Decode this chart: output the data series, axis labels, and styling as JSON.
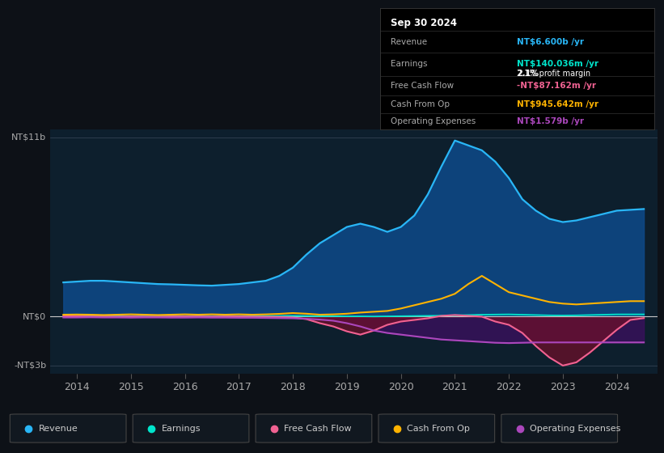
{
  "bg_color": "#0d1117",
  "plot_bg_color": "#0d1f2d",
  "years": [
    2013.75,
    2014.0,
    2014.25,
    2014.5,
    2014.75,
    2015.0,
    2015.25,
    2015.5,
    2015.75,
    2016.0,
    2016.25,
    2016.5,
    2016.75,
    2017.0,
    2017.25,
    2017.5,
    2017.75,
    2018.0,
    2018.25,
    2018.5,
    2018.75,
    2019.0,
    2019.25,
    2019.5,
    2019.75,
    2020.0,
    2020.25,
    2020.5,
    2020.75,
    2021.0,
    2021.25,
    2021.5,
    2021.75,
    2022.0,
    2022.25,
    2022.5,
    2022.75,
    2023.0,
    2023.25,
    2023.5,
    2023.75,
    2024.0,
    2024.25,
    2024.5
  ],
  "revenue": [
    2.1,
    2.15,
    2.2,
    2.2,
    2.15,
    2.1,
    2.05,
    2.0,
    1.98,
    1.95,
    1.92,
    1.9,
    1.95,
    2.0,
    2.1,
    2.2,
    2.5,
    3.0,
    3.8,
    4.5,
    5.0,
    5.5,
    5.7,
    5.5,
    5.2,
    5.5,
    6.2,
    7.5,
    9.2,
    10.8,
    10.5,
    10.2,
    9.5,
    8.5,
    7.2,
    6.5,
    6.0,
    5.8,
    5.9,
    6.1,
    6.3,
    6.5,
    6.55,
    6.6
  ],
  "earnings": [
    0.03,
    0.04,
    0.04,
    0.03,
    0.03,
    0.02,
    0.01,
    0.01,
    0.02,
    0.02,
    0.02,
    0.01,
    0.02,
    0.03,
    0.03,
    0.04,
    0.04,
    0.05,
    0.04,
    0.03,
    0.03,
    0.02,
    0.02,
    0.01,
    0.02,
    0.03,
    0.04,
    0.05,
    0.06,
    0.08,
    0.1,
    0.12,
    0.13,
    0.14,
    0.12,
    0.1,
    0.08,
    0.07,
    0.08,
    0.1,
    0.12,
    0.14,
    0.14,
    0.14
  ],
  "free_cash_flow": [
    0.02,
    0.02,
    0.01,
    0.01,
    0.0,
    0.01,
    0.0,
    0.0,
    0.01,
    0.01,
    0.01,
    0.0,
    0.01,
    0.01,
    0.0,
    -0.01,
    -0.02,
    -0.05,
    -0.15,
    -0.4,
    -0.6,
    -0.9,
    -1.1,
    -0.85,
    -0.5,
    -0.3,
    -0.2,
    -0.1,
    0.05,
    0.1,
    0.05,
    0.0,
    -0.3,
    -0.5,
    -1.0,
    -1.8,
    -2.5,
    -3.0,
    -2.8,
    -2.2,
    -1.5,
    -0.8,
    -0.2,
    -0.09
  ],
  "cash_from_op": [
    0.12,
    0.13,
    0.12,
    0.1,
    0.12,
    0.14,
    0.12,
    0.1,
    0.12,
    0.14,
    0.12,
    0.14,
    0.12,
    0.14,
    0.12,
    0.14,
    0.17,
    0.22,
    0.18,
    0.12,
    0.14,
    0.18,
    0.25,
    0.3,
    0.35,
    0.5,
    0.7,
    0.9,
    1.1,
    1.4,
    2.0,
    2.5,
    2.0,
    1.5,
    1.3,
    1.1,
    0.9,
    0.8,
    0.75,
    0.8,
    0.85,
    0.9,
    0.95,
    0.95
  ],
  "operating_expenses": [
    -0.05,
    -0.05,
    -0.04,
    -0.05,
    -0.05,
    -0.06,
    -0.05,
    -0.05,
    -0.06,
    -0.06,
    -0.05,
    -0.06,
    -0.06,
    -0.07,
    -0.07,
    -0.08,
    -0.09,
    -0.1,
    -0.13,
    -0.18,
    -0.25,
    -0.4,
    -0.6,
    -0.85,
    -1.0,
    -1.1,
    -1.2,
    -1.3,
    -1.4,
    -1.45,
    -1.5,
    -1.55,
    -1.6,
    -1.62,
    -1.6,
    -1.58,
    -1.58,
    -1.58,
    -1.58,
    -1.58,
    -1.58,
    -1.58,
    -1.58,
    -1.58
  ],
  "revenue_color": "#29b6f6",
  "earnings_color": "#00e5cc",
  "free_cash_flow_color": "#f06292",
  "cash_from_op_color": "#ffb300",
  "operating_expenses_color": "#ab47bc",
  "revenue_fill_color": "#0d4a8a",
  "free_cash_flow_fill_color": "#6b0f2a",
  "operating_expenses_fill_color": "#3d1060",
  "xlim": [
    2013.5,
    2024.75
  ],
  "ylim": [
    -3.5,
    11.5
  ],
  "xtick_years": [
    2014,
    2015,
    2016,
    2017,
    2018,
    2019,
    2020,
    2021,
    2022,
    2023,
    2024
  ],
  "tooltip_date": "Sep 30 2024",
  "tooltip_revenue_label": "Revenue",
  "tooltip_revenue_value": "NT$6.600b",
  "tooltip_earnings_label": "Earnings",
  "tooltip_earnings_value": "NT$140.036m",
  "tooltip_profit_margin": "2.1% profit margin",
  "tooltip_fcf_label": "Free Cash Flow",
  "tooltip_fcf_value": "-NT$87.162m",
  "tooltip_cashop_label": "Cash From Op",
  "tooltip_cashop_value": "NT$945.642m",
  "tooltip_opex_label": "Operating Expenses",
  "tooltip_opex_value": "NT$1.579b",
  "legend": [
    {
      "label": "Revenue",
      "color": "#29b6f6"
    },
    {
      "label": "Earnings",
      "color": "#00e5cc"
    },
    {
      "label": "Free Cash Flow",
      "color": "#f06292"
    },
    {
      "label": "Cash From Op",
      "color": "#ffb300"
    },
    {
      "label": "Operating Expenses",
      "color": "#ab47bc"
    }
  ]
}
